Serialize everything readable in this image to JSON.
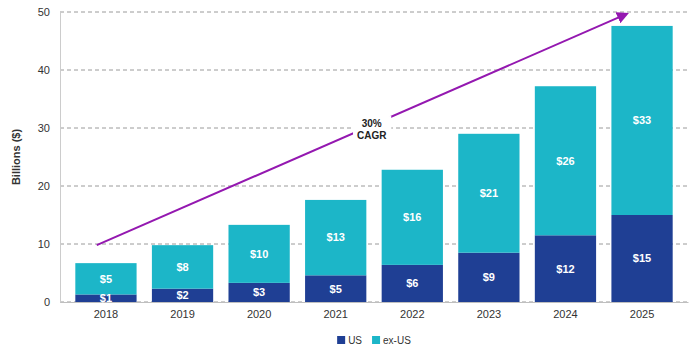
{
  "chart_data": {
    "type": "bar",
    "stacked": true,
    "data_labels": true,
    "grid": true,
    "legend": "bottom",
    "y_label": "Billions ($)",
    "categories": [
      "2018",
      "2019",
      "2020",
      "2021",
      "2022",
      "2023",
      "2024",
      "2025"
    ],
    "series": [
      {
        "name": "US",
        "color": "#1f3f94",
        "values": [
          1.3,
          2.3,
          3.3,
          4.6,
          6.4,
          8.5,
          11.5,
          15.0
        ],
        "value_labels": [
          "$1",
          "$2",
          "$3",
          "$5",
          "$6",
          "$9",
          "$12",
          "$15"
        ]
      },
      {
        "name": "ex-US",
        "color": "#1cb6c8",
        "values": [
          5.4,
          7.5,
          10.0,
          13.0,
          16.4,
          20.5,
          25.7,
          32.6
        ],
        "value_labels": [
          "$5",
          "$8",
          "$10",
          "$13",
          "$16",
          "$21",
          "$26",
          "$33"
        ]
      }
    ],
    "ylim": [
      0,
      50
    ],
    "yticks": [
      0,
      10,
      20,
      30,
      40,
      50
    ],
    "annotations": [
      {
        "text": [
          "30%",
          "CAGR"
        ],
        "color": "#9418b0"
      }
    ]
  }
}
